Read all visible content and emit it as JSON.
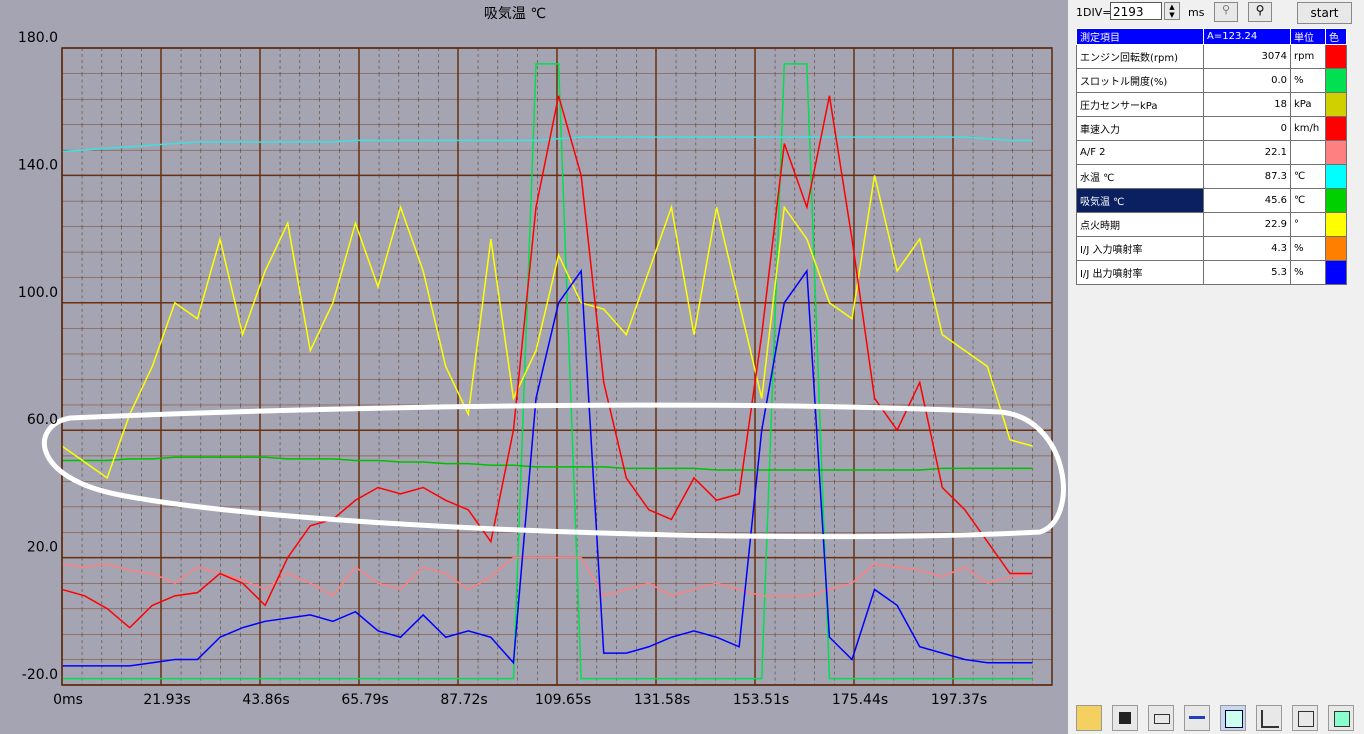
{
  "chart_data": {
    "type": "line",
    "title": "吸気温 ℃",
    "xlim": [
      0,
      219.3
    ],
    "ylim": [
      -20,
      180
    ],
    "xticks": [
      {
        "value": 0,
        "label": "0ms"
      },
      {
        "value": 21.93,
        "label": "21.93s"
      },
      {
        "value": 43.86,
        "label": "43.86s"
      },
      {
        "value": 65.79,
        "label": "65.79s"
      },
      {
        "value": 87.72,
        "label": "87.72s"
      },
      {
        "value": 109.65,
        "label": "109.65s"
      },
      {
        "value": 131.58,
        "label": "131.58s"
      },
      {
        "value": 153.51,
        "label": "153.51s"
      },
      {
        "value": 175.44,
        "label": "175.44s"
      },
      {
        "value": 197.37,
        "label": "197.37s"
      }
    ],
    "yticks": [
      {
        "value": 180,
        "label": "180.0"
      },
      {
        "value": 140,
        "label": "140.0"
      },
      {
        "value": 100,
        "label": "100.0"
      },
      {
        "value": 60,
        "label": "60.0"
      },
      {
        "value": 20,
        "label": "20.0"
      },
      {
        "value": -20,
        "label": "-20.0"
      }
    ],
    "grid": true,
    "x": [
      0,
      5,
      10,
      15,
      20,
      25,
      30,
      35,
      40,
      45,
      50,
      55,
      60,
      65,
      70,
      75,
      80,
      85,
      90,
      95,
      100,
      105,
      110,
      115,
      120,
      125,
      130,
      135,
      140,
      145,
      150,
      155,
      160,
      165,
      170,
      175,
      180,
      185,
      190,
      195,
      200,
      205,
      210,
      215
    ],
    "series": [
      {
        "color": "#00e050",
        "values": [
          -18,
          -18,
          -18,
          -18,
          -18,
          -18,
          -18,
          -18,
          -18,
          -18,
          -18,
          -18,
          -18,
          -18,
          -18,
          -18,
          -18,
          -18,
          -18,
          -18,
          -18,
          175,
          175,
          -18,
          -18,
          -18,
          -18,
          -18,
          -18,
          -18,
          -18,
          -18,
          175,
          175,
          -18,
          -18,
          -18,
          -18,
          -18,
          -18,
          -18,
          -18,
          -18,
          -18
        ]
      },
      {
        "color": "#ff8080",
        "values": [
          18,
          17,
          18,
          16,
          15,
          12,
          17,
          15,
          13,
          10,
          15,
          12,
          8,
          17,
          12,
          10,
          17,
          15,
          10,
          14,
          20,
          20,
          20,
          20,
          8,
          10,
          12,
          8,
          10,
          12,
          10,
          8,
          8,
          8,
          10,
          12,
          18,
          17,
          16,
          14,
          17,
          12,
          14,
          15
        ]
      },
      {
        "color": "#40e0e0",
        "values": [
          147.5,
          148,
          148.5,
          149,
          149.5,
          150,
          150.5,
          150.5,
          150.5,
          150.5,
          150.5,
          150.5,
          150.5,
          151,
          151,
          151,
          151,
          151,
          151,
          151,
          151,
          151,
          151.5,
          152,
          152,
          152,
          152,
          152,
          152,
          152,
          152,
          152,
          152,
          152,
          152,
          152,
          152,
          152,
          152,
          152,
          152,
          151.5,
          151,
          151
        ]
      },
      {
        "color": "#00c000",
        "values": [
          50.5,
          50.5,
          50.5,
          51,
          51,
          51.5,
          51.5,
          51.5,
          51.5,
          51.5,
          51,
          51,
          51,
          50.5,
          50.5,
          50,
          50,
          49.5,
          49.5,
          49,
          49,
          48.5,
          48.5,
          48.5,
          48.5,
          48,
          48,
          48,
          48,
          47.5,
          47.5,
          47.5,
          47.5,
          47.5,
          47.5,
          47.5,
          47.5,
          47.5,
          47.5,
          48,
          48,
          48,
          48,
          48
        ]
      },
      {
        "color": "#ffff00",
        "values": [
          55,
          50,
          45,
          65,
          80,
          100,
          95,
          120,
          90,
          110,
          125,
          85,
          100,
          125,
          105,
          130,
          110,
          80,
          65,
          120,
          70,
          85,
          115,
          100,
          98,
          90,
          110,
          130,
          90,
          130,
          100,
          70,
          130,
          120,
          100,
          95,
          140,
          110,
          120,
          90,
          85,
          80,
          57,
          55
        ]
      },
      {
        "color": "#ff0000",
        "values": [
          10,
          8,
          4,
          -2,
          5,
          8,
          9,
          15,
          12,
          5,
          20,
          30,
          32,
          38,
          42,
          40,
          42,
          38,
          35,
          25,
          60,
          130,
          165,
          140,
          75,
          45,
          35,
          32,
          45,
          38,
          40,
          90,
          150,
          130,
          165,
          120,
          70,
          60,
          75,
          42,
          35,
          25,
          15,
          15
        ]
      },
      {
        "color": "#0000ff",
        "values": [
          -14,
          -14,
          -14,
          -14,
          -13,
          -12,
          -12,
          -5,
          -2,
          0,
          1,
          2,
          0,
          3,
          -3,
          -5,
          2,
          -5,
          -3,
          -5,
          -13,
          70,
          100,
          110,
          -10,
          -10,
          -8,
          -5,
          -3,
          -5,
          -8,
          60,
          100,
          110,
          -5,
          -12,
          10,
          5,
          -8,
          -10,
          -12,
          -13,
          -13,
          -13
        ]
      }
    ]
  },
  "toolbar": {
    "div_label": "1DIV=",
    "div_value": "2193",
    "unit": "ms",
    "start": "start"
  },
  "table": {
    "header": [
      "測定項目",
      "A=123.24",
      "単位",
      "色"
    ],
    "selected": 6,
    "rows": [
      {
        "name": "エンジン回転数(rpm)",
        "value": "3074",
        "unit": "rpm",
        "color": "#ff0000"
      },
      {
        "name": "スロットル開度(%)",
        "value": "0.0",
        "unit": "%",
        "color": "#00e050"
      },
      {
        "name": "圧力センサーkPa",
        "value": "18",
        "unit": "kPa",
        "color": "#d0d000"
      },
      {
        "name": "車速入力",
        "value": "0",
        "unit": "km/h",
        "color": "#ff0000"
      },
      {
        "name": "A/F 2",
        "value": "22.1",
        "color": "#ff8080"
      },
      {
        "name": "水温 ℃",
        "value": "87.3",
        "unit": "℃",
        "color": "#00ffff"
      },
      {
        "name": "吸気温 ℃",
        "value": "45.6",
        "unit": "℃",
        "color": "#00d000"
      },
      {
        "name": "点火時期",
        "value": "22.9",
        "unit": "°",
        "color": "#ffff00"
      },
      {
        "name": "I/J 入力噴射率",
        "value": "4.3",
        "unit": "%",
        "color": "#ff8000"
      },
      {
        "name": "I/J 出力噴射率",
        "value": "5.3",
        "unit": "%",
        "color": "#0000ff"
      }
    ]
  }
}
